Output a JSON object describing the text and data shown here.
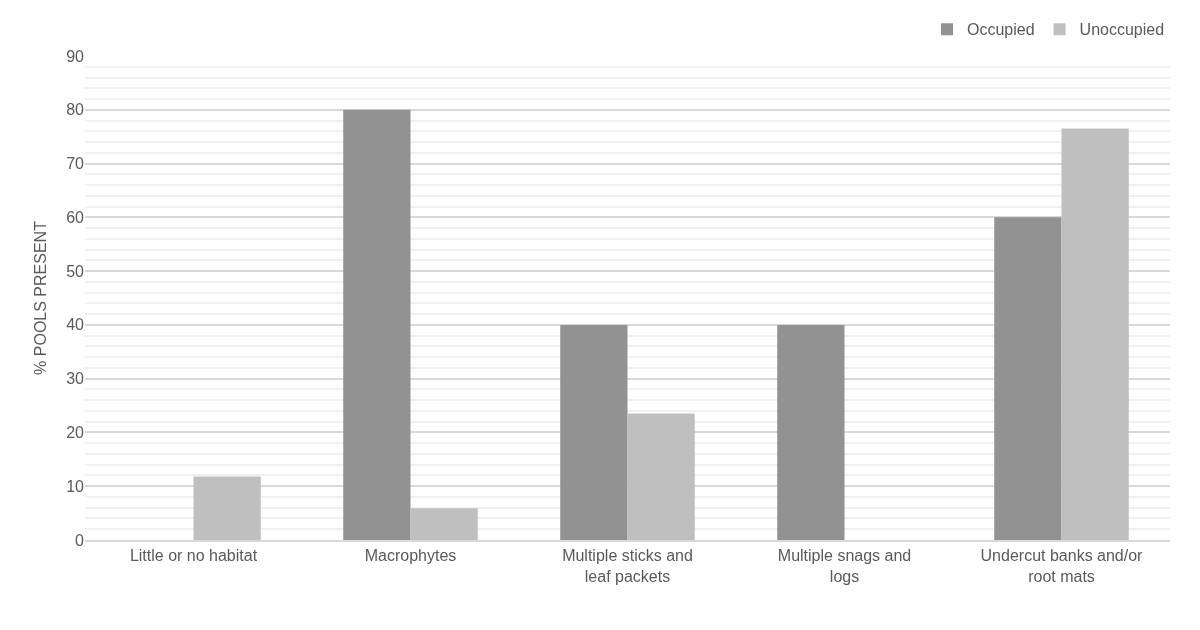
{
  "chart_data": {
    "type": "bar",
    "ylabel": "% POOLS PRESENT",
    "categories": [
      "Little or no habitat",
      "Macrophytes",
      "Multiple sticks and leaf packets",
      "Multiple snags and logs",
      "Undercut banks and/or root mats"
    ],
    "series": [
      {
        "name": "Occupied",
        "color": "#929292",
        "values": [
          0,
          80,
          40,
          40,
          60
        ]
      },
      {
        "name": "Unoccupied",
        "color": "#bfbfbf",
        "values": [
          11.8,
          5.9,
          23.5,
          0,
          76.5
        ]
      }
    ],
    "ylim": [
      0,
      90
    ],
    "yticks": [
      0,
      {
        "value": 2,
        "label": null
      },
      {
        "value": 4,
        "label": null
      },
      {
        "value": 6,
        "label": null
      },
      {
        "value": 8,
        "label": null
      },
      10,
      {
        "value": 12,
        "label": null
      },
      {
        "value": 14,
        "label": null
      },
      {
        "value": 16,
        "label": null
      },
      {
        "value": 18,
        "label": null
      },
      20,
      {
        "value": 22,
        "label": null
      },
      {
        "value": 24,
        "label": null
      },
      {
        "value": 26,
        "label": null
      },
      {
        "value": 28,
        "label": null
      },
      30,
      {
        "value": 32,
        "label": null
      },
      {
        "value": 34,
        "label": null
      },
      {
        "value": 36,
        "label": null
      },
      {
        "value": 38,
        "label": null
      },
      40,
      {
        "value": 42,
        "label": null
      },
      {
        "value": 44,
        "label": null
      },
      {
        "value": 46,
        "label": null
      },
      {
        "value": 48,
        "label": null
      },
      50,
      {
        "value": 52,
        "label": null
      },
      {
        "value": 54,
        "label": null
      },
      {
        "value": 56,
        "label": null
      },
      {
        "value": 58,
        "label": null
      },
      60,
      {
        "value": 62,
        "label": null
      },
      {
        "value": 64,
        "label": null
      },
      {
        "value": 66,
        "label": null
      },
      {
        "value": 68,
        "label": null
      },
      70,
      {
        "value": 72,
        "label": null
      },
      {
        "value": 74,
        "label": null
      },
      {
        "value": 76,
        "label": null
      },
      {
        "value": 78,
        "label": null
      },
      80,
      {
        "value": 82,
        "label": null
      },
      {
        "value": 84,
        "label": null
      },
      {
        "value": 86,
        "label": null
      },
      {
        "value": 88,
        "label": null
      },
      90
    ],
    "grid": "y",
    "legend": "top right"
  }
}
